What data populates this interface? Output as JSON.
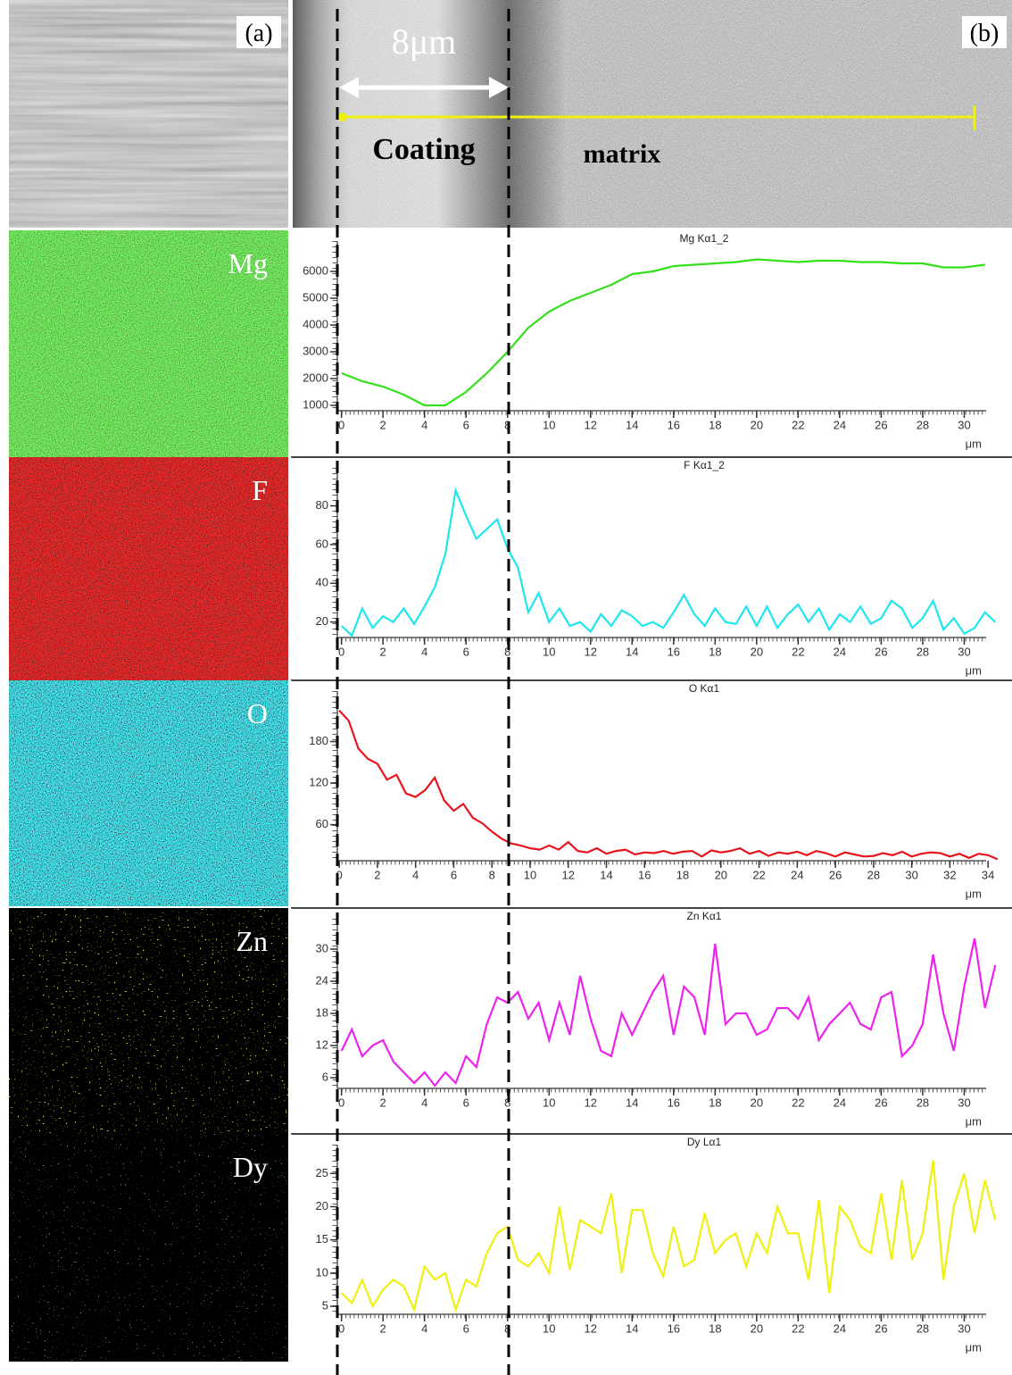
{
  "figure": {
    "panel_a": "(a)",
    "panel_b": "(b)",
    "scale": "8μm",
    "coating": "Coating",
    "matrix": "matrix",
    "maps": [
      "Mg",
      "F",
      "O",
      "Zn",
      "Dy"
    ]
  },
  "chart_data": [
    {
      "type": "line",
      "title": "Mg Kα1_2",
      "xlabel": "μm",
      "color": "#33e01a",
      "x": [
        0,
        1,
        2,
        3,
        4,
        5,
        6,
        7,
        8,
        9,
        10,
        11,
        12,
        13,
        14,
        15,
        16,
        17,
        18,
        19,
        20,
        21,
        22,
        23,
        24,
        25,
        26,
        27,
        28,
        29,
        30,
        31
      ],
      "values": [
        2200,
        1900,
        1700,
        1400,
        1000,
        1000,
        1500,
        2200,
        3000,
        3900,
        4500,
        4900,
        5200,
        5500,
        5900,
        6000,
        6200,
        6250,
        6300,
        6350,
        6450,
        6400,
        6350,
        6400,
        6400,
        6350,
        6350,
        6300,
        6300,
        6150,
        6150,
        6250
      ],
      "xlim": [
        -0.2,
        31.7
      ],
      "ylim": [
        800,
        6800
      ],
      "xticks": [
        0,
        2,
        4,
        6,
        8,
        10,
        12,
        14,
        16,
        18,
        20,
        22,
        24,
        26,
        28,
        30
      ],
      "yticks": [
        1000,
        2000,
        3000,
        4000,
        5000,
        6000
      ]
    },
    {
      "type": "line",
      "title": "F Kα1_2",
      "xlabel": "μm",
      "color": "#1ee6ee",
      "x": [
        0,
        0.5,
        1,
        1.5,
        2,
        2.5,
        3,
        3.5,
        4,
        4.5,
        5,
        5.5,
        6,
        6.5,
        7,
        7.5,
        8,
        8.5,
        9,
        9.5,
        10,
        10.5,
        11,
        11.5,
        12,
        12.5,
        13,
        13.5,
        14,
        14.5,
        15,
        15.5,
        16,
        16.5,
        17,
        17.5,
        18,
        18.5,
        19,
        19.5,
        20,
        20.5,
        21,
        21.5,
        22,
        22.5,
        23,
        23.5,
        24,
        24.5,
        25,
        25.5,
        26,
        26.5,
        27,
        27.5,
        28,
        28.5,
        29,
        29.5,
        30,
        30.5,
        31,
        31.5
      ],
      "values": [
        18,
        13,
        27,
        17,
        23,
        20,
        27,
        19,
        28,
        38,
        55,
        88,
        75,
        63,
        68,
        73,
        58,
        48,
        25,
        35,
        20,
        27,
        18,
        20,
        15,
        24,
        18,
        26,
        23,
        18,
        20,
        17,
        25,
        34,
        24,
        18,
        27,
        20,
        19,
        28,
        18,
        28,
        17,
        24,
        29,
        20,
        27,
        16,
        24,
        20,
        28,
        19,
        22,
        31,
        27,
        17,
        22,
        31,
        16,
        22,
        14,
        17,
        25,
        20
      ],
      "xlim": [
        -0.2,
        31.7
      ],
      "ylim": [
        12,
        95
      ],
      "xticks": [
        0,
        2,
        4,
        6,
        8,
        10,
        12,
        14,
        16,
        18,
        20,
        22,
        24,
        26,
        28,
        30
      ],
      "yticks": [
        20,
        40,
        60,
        80
      ]
    },
    {
      "type": "line",
      "title": "O Kα1",
      "xlabel": "μm",
      "color": "#e8141c",
      "x": [
        0,
        0.5,
        1,
        1.5,
        2,
        2.5,
        3,
        3.5,
        4,
        4.5,
        5,
        5.5,
        6,
        6.5,
        7,
        7.5,
        8,
        8.5,
        9,
        9.5,
        10,
        10.5,
        11,
        11.5,
        12,
        12.5,
        13,
        13.5,
        14,
        14.5,
        15,
        15.5,
        16,
        16.5,
        17,
        17.5,
        18,
        18.5,
        19,
        19.5,
        20,
        20.5,
        21,
        21.5,
        22,
        22.5,
        23,
        23.5,
        24,
        24.5,
        25,
        25.5,
        26,
        26.5,
        27,
        27.5,
        28,
        28.5,
        29,
        29.5,
        30,
        30.5,
        31,
        31.5,
        32,
        32.5,
        33,
        33.5,
        34,
        34.5
      ],
      "values": [
        225,
        210,
        170,
        155,
        148,
        125,
        132,
        105,
        100,
        110,
        128,
        95,
        80,
        90,
        70,
        62,
        50,
        40,
        33,
        30,
        26,
        24,
        30,
        24,
        35,
        22,
        20,
        26,
        18,
        22,
        24,
        17,
        20,
        19,
        22,
        18,
        21,
        22,
        14,
        23,
        20,
        22,
        26,
        18,
        22,
        15,
        20,
        18,
        21,
        16,
        22,
        19,
        14,
        20,
        17,
        14,
        15,
        19,
        16,
        21,
        14,
        18,
        20,
        19,
        14,
        18,
        12,
        18,
        16,
        10
      ],
      "xlim": [
        -0.1,
        34.6
      ],
      "ylim": [
        8,
        240
      ],
      "xticks": [
        0,
        2,
        4,
        6,
        8,
        10,
        12,
        14,
        16,
        18,
        20,
        22,
        24,
        26,
        28,
        30,
        32,
        34
      ],
      "yticks": [
        60,
        120,
        180
      ]
    },
    {
      "type": "line",
      "title": "Zn Kα1",
      "xlabel": "μm",
      "color": "#ee22ee",
      "x": [
        0,
        0.5,
        1,
        1.5,
        2,
        2.5,
        3,
        3.5,
        4,
        4.5,
        5,
        5.5,
        6,
        6.5,
        7,
        7.5,
        8,
        8.5,
        9,
        9.5,
        10,
        10.5,
        11,
        11.5,
        12,
        12.5,
        13,
        13.5,
        14,
        14.5,
        15,
        15.5,
        16,
        16.5,
        17,
        17.5,
        18,
        18.5,
        19,
        19.5,
        20,
        20.5,
        21,
        21.5,
        22,
        22.5,
        23,
        23.5,
        24,
        24.5,
        25,
        25.5,
        26,
        26.5,
        27,
        27.5,
        28,
        28.5,
        29,
        29.5,
        30,
        30.5,
        31,
        31.5
      ],
      "values": [
        11,
        15,
        10,
        12,
        13,
        9,
        7,
        5,
        7,
        4.5,
        7,
        5,
        10,
        8,
        16,
        21,
        20,
        22,
        17,
        20,
        13,
        20,
        14,
        25,
        17,
        11,
        10,
        18,
        14,
        18,
        22,
        25,
        14,
        23,
        21,
        14,
        31,
        16,
        18,
        18,
        14,
        15,
        19,
        19,
        17,
        21,
        13,
        16,
        18,
        20,
        16,
        15,
        21,
        22,
        10,
        12,
        16,
        29,
        18,
        11,
        23,
        32,
        19,
        27
      ],
      "xlim": [
        -0.2,
        31.7
      ],
      "ylim": [
        4,
        34
      ],
      "xticks": [
        0,
        2,
        4,
        6,
        8,
        10,
        12,
        14,
        16,
        18,
        20,
        22,
        24,
        26,
        28,
        30
      ],
      "yticks": [
        6,
        12,
        18,
        24,
        30
      ]
    },
    {
      "type": "line",
      "title": "Dy Lα1",
      "xlabel": "μm",
      "color": "#f0f010",
      "x": [
        0,
        0.5,
        1,
        1.5,
        2,
        2.5,
        3,
        3.5,
        4,
        4.5,
        5,
        5.5,
        6,
        6.5,
        7,
        7.5,
        8,
        8.5,
        9,
        9.5,
        10,
        10.5,
        11,
        11.5,
        12,
        12.5,
        13,
        13.5,
        14,
        14.5,
        15,
        15.5,
        16,
        16.5,
        17,
        17.5,
        18,
        18.5,
        19,
        19.5,
        20,
        20.5,
        21,
        21.5,
        22,
        22.5,
        23,
        23.5,
        24,
        24.5,
        25,
        25.5,
        26,
        26.5,
        27,
        27.5,
        28,
        28.5,
        29,
        29.5,
        30,
        30.5,
        31,
        31.5
      ],
      "values": [
        7,
        5.5,
        9,
        5,
        7.5,
        9,
        8,
        4.5,
        11,
        9,
        10,
        4.5,
        9,
        8,
        13,
        16,
        17,
        12,
        11,
        13,
        10,
        20,
        10.5,
        18,
        17,
        16,
        22,
        10,
        19.5,
        19.5,
        13,
        9.5,
        17,
        11,
        12,
        19,
        13,
        15,
        16,
        11,
        16,
        13,
        20,
        16,
        16,
        9,
        21,
        7,
        20,
        18,
        14,
        13,
        22,
        12,
        24,
        12,
        16,
        27,
        9,
        20,
        25,
        16,
        24,
        18
      ],
      "xlim": [
        -0.2,
        31.7
      ],
      "ylim": [
        3.8,
        28
      ],
      "xticks": [
        0,
        2,
        4,
        6,
        8,
        10,
        12,
        14,
        16,
        18,
        20,
        22,
        24,
        26,
        28,
        30
      ],
      "yticks": [
        5,
        10,
        15,
        20,
        25
      ]
    }
  ]
}
